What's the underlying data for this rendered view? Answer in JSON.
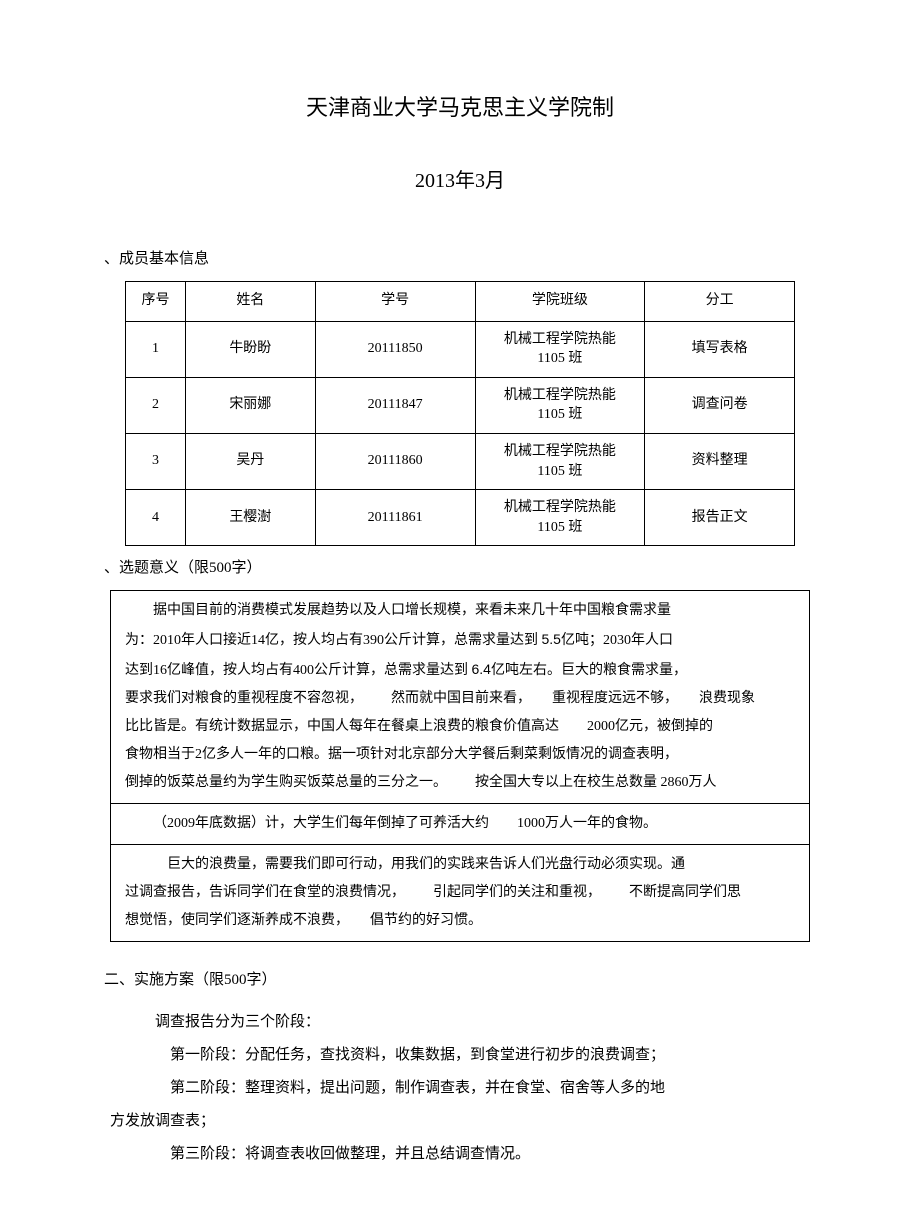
{
  "header": {
    "title": "天津商业大学马克思主义学院制",
    "date": "2013年3月"
  },
  "section1": {
    "label": "、成员基本信息",
    "columns": [
      "序号",
      "姓名",
      "学号",
      "学院班级",
      "分工"
    ],
    "rows": [
      {
        "seq": "1",
        "name": "牛盼盼",
        "id": "20111850",
        "class_l1": "机械工程学院热能",
        "class_l2": "1105  班",
        "role": "填写表格"
      },
      {
        "seq": "2",
        "name": "宋丽娜",
        "id": "20111847",
        "class_l1": "机械工程学院热能",
        "class_l2": "1105  班",
        "role": "调查问卷"
      },
      {
        "seq": "3",
        "name": "吴丹",
        "id": "20111860",
        "class_l1": "机械工程学院热能",
        "class_l2": "1105  班",
        "role": "资料整理"
      },
      {
        "seq": "4",
        "name": "王樱澍",
        "id": "20111861",
        "class_l1": "机械工程学院热能",
        "class_l2": "1105  班",
        "role": "报告正文"
      }
    ]
  },
  "topic": {
    "label": "、选题意义（限500字）",
    "p1_l1": "据中国目前的消费模式发展趋势以及人口增长规模，来看未来几十年中国粮食需求量",
    "p1_l2a": "为：2010年人口接近14亿，按人均占有390公斤计算，总需求量达到 ",
    "p1_l2b": "5.5",
    "p1_l2c": "亿吨；2030年人口",
    "p1_l3a": "达到16亿峰值，按人均占有400公斤计算，总需求量达到 ",
    "p1_l3b": "6.4",
    "p1_l3c": "亿吨左右。巨大的粮食需求量，",
    "p1_l4a": "要求我们对粮食的重视程度不容忽视，",
    "p1_l4b": "然而就中国目前来看，",
    "p1_l4c": "重视程度远远不够，",
    "p1_l4d": "浪费现象",
    "p1_l5a": "比比皆是。有统计数据显示，中国人每年在餐桌上浪费的粮食价值高达",
    "p1_l5b": "2000亿元，被倒掉的",
    "p1_l6": "食物相当于2亿多人一年的口粮。据一项针对北京部分大学餐后剩菜剩饭情况的调查表明，",
    "p1_l7a": "倒掉的饭菜总量约为学生购买饭菜总量的三分之一。",
    "p1_l7b": "按全国大专以上在校生总数量 ",
    "p1_l7c": "2860万人",
    "p2a": "（2009年底数据）计，大学生们每年倒掉了可养活大约",
    "p2b": "1000万人一年的食物。",
    "p3_l1": "巨大的浪费量，需要我们即可行动，用我们的实践来告诉人们光盘行动必须实现。通",
    "p3_l2a": "过调查报告，告诉同学们在食堂的浪费情况，",
    "p3_l2b": "引起同学们的关注和重视，",
    "p3_l2c": "不断提高同学们思",
    "p3_l3a": "想觉悟，使同学们逐渐养成不浪费，",
    "p3_l3b": "倡节约的好习惯。"
  },
  "section2": {
    "label": "二、实施方案（限500字）",
    "lines": {
      "l1": "调查报告分为三个阶段：",
      "l2": "第一阶段：分配任务，查找资料，收集数据，到食堂进行初步的浪费调查；",
      "l3": "第二阶段：整理资料，提出问题，制作调查表，并在食堂、宿舍等人多的地",
      "l3b": "方发放调查表；",
      "l4": "第三阶段：将调查表收回做整理，并且总结调查情况。"
    }
  }
}
